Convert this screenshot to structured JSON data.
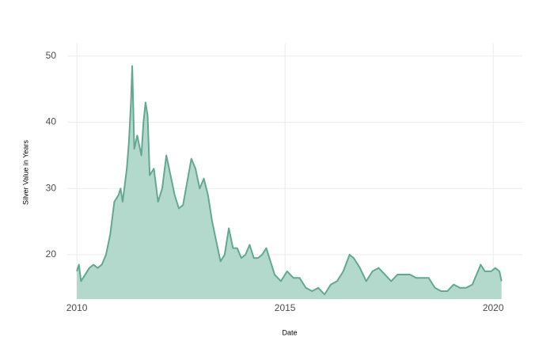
{
  "chart_data": {
    "type": "area",
    "x_label": "Date",
    "y_label": "Silver Value in Years",
    "x": [
      2010.0,
      2010.05,
      2010.1,
      2010.2,
      2010.3,
      2010.4,
      2010.5,
      2010.6,
      2010.7,
      2010.8,
      2010.9,
      2011.0,
      2011.05,
      2011.1,
      2011.2,
      2011.25,
      2011.3,
      2011.33,
      2011.38,
      2011.45,
      2011.55,
      2011.6,
      2011.65,
      2011.7,
      2011.75,
      2011.85,
      2011.95,
      2012.05,
      2012.15,
      2012.25,
      2012.35,
      2012.45,
      2012.55,
      2012.65,
      2012.75,
      2012.85,
      2012.95,
      2013.05,
      2013.15,
      2013.25,
      2013.35,
      2013.45,
      2013.55,
      2013.65,
      2013.75,
      2013.85,
      2013.95,
      2014.05,
      2014.15,
      2014.25,
      2014.35,
      2014.45,
      2014.55,
      2014.65,
      2014.75,
      2014.9,
      2015.05,
      2015.2,
      2015.35,
      2015.5,
      2015.65,
      2015.8,
      2015.95,
      2016.1,
      2016.25,
      2016.4,
      2016.55,
      2016.65,
      2016.8,
      2016.95,
      2017.1,
      2017.25,
      2017.4,
      2017.55,
      2017.7,
      2017.85,
      2018.0,
      2018.15,
      2018.3,
      2018.45,
      2018.6,
      2018.75,
      2018.9,
      2019.05,
      2019.2,
      2019.35,
      2019.5,
      2019.6,
      2019.7,
      2019.8,
      2019.95,
      2020.05,
      2020.15,
      2020.2
    ],
    "values": [
      17.5,
      18.5,
      16,
      17,
      18,
      18.5,
      18,
      18.5,
      20,
      23,
      28,
      29,
      30,
      28,
      33,
      37,
      43,
      48.5,
      36,
      38,
      35,
      40,
      43,
      41,
      32,
      33,
      28,
      30,
      35,
      32,
      29,
      27,
      27.5,
      31,
      34.5,
      33,
      30,
      31.5,
      29,
      25,
      22,
      19,
      20,
      24,
      21,
      21,
      19.5,
      20,
      21.5,
      19.5,
      19.5,
      20,
      21,
      19,
      17,
      16,
      17.5,
      16.5,
      16.5,
      15,
      14.5,
      15,
      14,
      15.5,
      16,
      17.5,
      20,
      19.5,
      18,
      16,
      17.5,
      18,
      17,
      16,
      17,
      17,
      17,
      16.5,
      16.5,
      16.5,
      15,
      14.5,
      14.5,
      15.5,
      15,
      15,
      15.5,
      17,
      18.5,
      17.5,
      17.5,
      18,
      17.5,
      16
    ],
    "line_color": "#63a890",
    "fill_color": "#b3d9cd",
    "xlim": [
      2009.77,
      2020.7
    ],
    "xticks": [
      2010,
      2015,
      2020
    ],
    "ylim": [
      13.3,
      51.9
    ],
    "yticks": [
      20,
      30,
      40,
      50
    ],
    "grid": true
  }
}
